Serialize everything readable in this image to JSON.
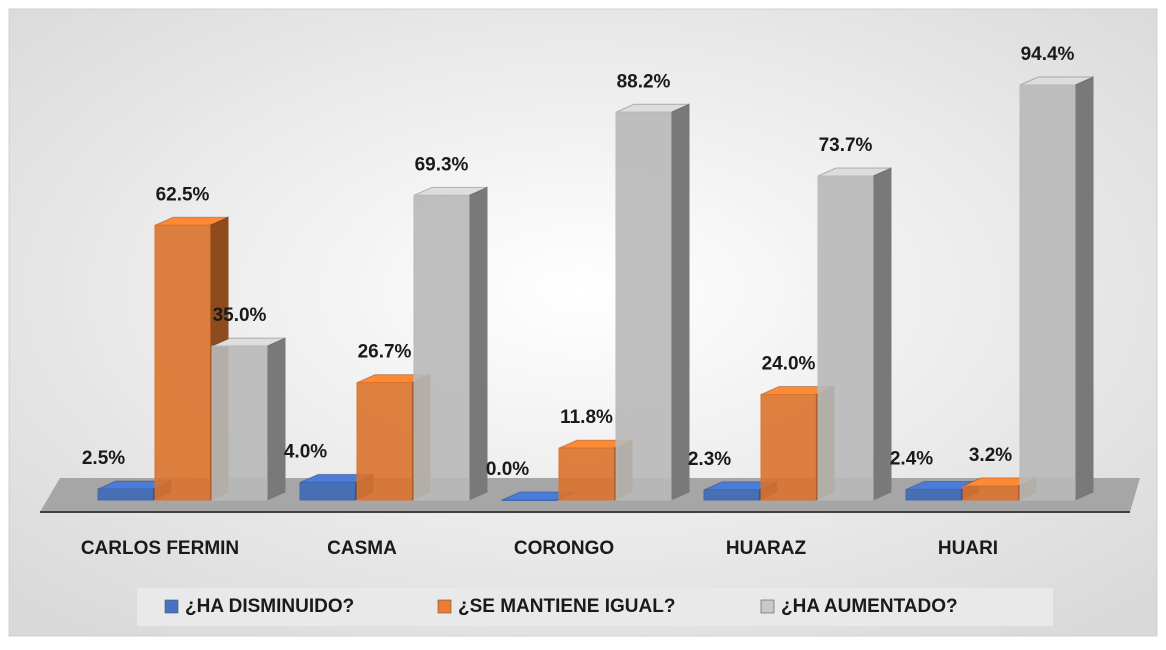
{
  "chart_data": {
    "type": "bar3d",
    "categories": [
      "CARLOS FERMIN",
      "CASMA",
      "CORONGO",
      "HUARAZ",
      "HUARI"
    ],
    "series": [
      {
        "name": "¿HA DISMINUIDO?",
        "color": "#4472c4",
        "values": [
          2.5,
          4.0,
          0.0,
          2.3,
          2.4
        ],
        "value_labels": [
          "2.5%",
          "4.0%",
          "0.0%",
          "2.3%",
          "2.4%"
        ]
      },
      {
        "name": "¿SE MANTIENE IGUAL?",
        "color": "#ed7d31",
        "values": [
          62.5,
          26.7,
          11.8,
          24.0,
          3.2
        ],
        "value_labels": [
          "62.5%",
          "26.7%",
          "11.8%",
          "24.0%",
          "3.2%"
        ]
      },
      {
        "name": "¿HA AUMENTADO?",
        "color": "#c9c9c9",
        "values": [
          35.0,
          69.3,
          88.2,
          73.7,
          94.4
        ],
        "value_labels": [
          "35.0%",
          "69.3%",
          "88.2%",
          "73.7%",
          "94.4%"
        ]
      }
    ],
    "legend": "bottom"
  }
}
